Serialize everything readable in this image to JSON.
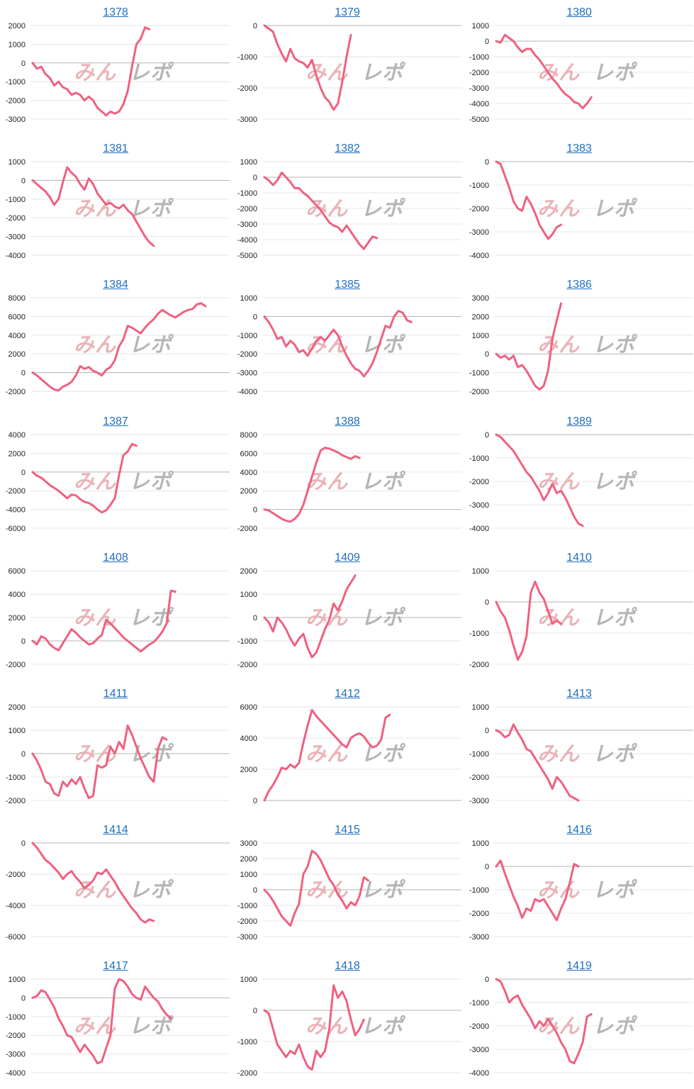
{
  "watermark": {
    "part1": "みん",
    "part2": "レポ",
    "color1": "#e9b4b8",
    "color2": "#b5b5b5"
  },
  "line_color": "#f06080",
  "chart_data": [
    {
      "type": "line",
      "title": "1378",
      "ylim": [
        -3000,
        2000
      ],
      "yticks": [
        2000,
        1000,
        0,
        -1000,
        -2000,
        -3000
      ],
      "values": [
        0,
        -300,
        -200,
        -600,
        -800,
        -1200,
        -1000,
        -1300,
        -1400,
        -1700,
        -1600,
        -1700,
        -2000,
        -1800,
        -2000,
        -2400,
        -2600,
        -2800,
        -2600,
        -2700,
        -2600,
        -2200,
        -1500,
        -200,
        1000,
        1300,
        1900,
        1800
      ]
    },
    {
      "type": "line",
      "title": "1379",
      "ylim": [
        -3000,
        0
      ],
      "yticks": [
        0,
        -1000,
        -2000,
        -3000
      ],
      "values": [
        0,
        -100,
        -200,
        -600,
        -900,
        -1150,
        -750,
        -1050,
        -1150,
        -1200,
        -1350,
        -1100,
        -1600,
        -2000,
        -2300,
        -2450,
        -2700,
        -2500,
        -1800,
        -1000,
        -300
      ]
    },
    {
      "type": "line",
      "title": "1380",
      "ylim": [
        -5000,
        1000
      ],
      "yticks": [
        1000,
        0,
        -1000,
        -2000,
        -3000,
        -4000,
        -5000
      ],
      "values": [
        0,
        -100,
        400,
        200,
        0,
        -400,
        -700,
        -500,
        -500,
        -900,
        -1200,
        -1600,
        -2000,
        -2400,
        -2700,
        -3100,
        -3400,
        -3600,
        -3900,
        -4000,
        -4300,
        -4000,
        -3600
      ]
    },
    {
      "type": "line",
      "title": "1381",
      "ylim": [
        -4000,
        1000
      ],
      "yticks": [
        1000,
        0,
        -1000,
        -2000,
        -3000,
        -4000
      ],
      "values": [
        0,
        -200,
        -400,
        -600,
        -900,
        -1300,
        -1000,
        -100,
        700,
        400,
        200,
        -200,
        -500,
        100,
        -200,
        -700,
        -1000,
        -1300,
        -1200,
        -1400,
        -1500,
        -1300,
        -1600,
        -1800,
        -2200,
        -2600,
        -3000,
        -3300,
        -3500
      ]
    },
    {
      "type": "line",
      "title": "1382",
      "ylim": [
        -5000,
        1000
      ],
      "yticks": [
        1000,
        0,
        -1000,
        -2000,
        -3000,
        -4000,
        -5000
      ],
      "values": [
        0,
        -200,
        -500,
        -200,
        300,
        0,
        -300,
        -700,
        -700,
        -1000,
        -1200,
        -1500,
        -1800,
        -2100,
        -2500,
        -2900,
        -3100,
        -3200,
        -3500,
        -3100,
        -3500,
        -3900,
        -4300,
        -4600,
        -4200,
        -3800,
        -3900
      ]
    },
    {
      "type": "line",
      "title": "1383",
      "ylim": [
        -4000,
        0
      ],
      "yticks": [
        0,
        -1000,
        -2000,
        -3000,
        -4000
      ],
      "values": [
        0,
        -100,
        -600,
        -1100,
        -1700,
        -2000,
        -2100,
        -1500,
        -1800,
        -2200,
        -2700,
        -3000,
        -3300,
        -3100,
        -2800,
        -2700
      ]
    },
    {
      "type": "line",
      "title": "1384",
      "ylim": [
        -2000,
        8000
      ],
      "yticks": [
        8000,
        6000,
        4000,
        2000,
        0,
        -2000
      ],
      "values": [
        0,
        -300,
        -700,
        -1100,
        -1500,
        -1800,
        -1900,
        -1500,
        -1300,
        -1000,
        -300,
        700,
        400,
        600,
        200,
        0,
        -300,
        300,
        600,
        1300,
        2800,
        3600,
        5000,
        4800,
        4500,
        4200,
        4800,
        5300,
        5700,
        6300,
        6700,
        6400,
        6100,
        5900,
        6200,
        6500,
        6700,
        6800,
        7300,
        7400,
        7100
      ]
    },
    {
      "type": "line",
      "title": "1385",
      "ylim": [
        -4000,
        1000
      ],
      "yticks": [
        1000,
        0,
        -1000,
        -2000,
        -3000,
        -4000
      ],
      "values": [
        0,
        -300,
        -700,
        -1200,
        -1100,
        -1600,
        -1300,
        -1500,
        -1900,
        -1800,
        -2100,
        -1700,
        -1300,
        -1100,
        -1300,
        -1000,
        -700,
        -1000,
        -1600,
        -2100,
        -2500,
        -2800,
        -2900,
        -3200,
        -2900,
        -2500,
        -1900,
        -1200,
        -500,
        -600,
        0,
        300,
        200,
        -200,
        -300
      ]
    },
    {
      "type": "line",
      "title": "1386",
      "ylim": [
        -2000,
        3000
      ],
      "yticks": [
        3000,
        2000,
        1000,
        0,
        -1000,
        -2000
      ],
      "values": [
        0,
        -200,
        -100,
        -300,
        -100,
        -700,
        -600,
        -900,
        -1300,
        -1700,
        -1900,
        -1700,
        -900,
        800,
        1800,
        2700
      ]
    },
    {
      "type": "line",
      "title": "1387",
      "ylim": [
        -6000,
        4000
      ],
      "yticks": [
        4000,
        2000,
        0,
        -2000,
        -4000,
        -6000
      ],
      "values": [
        0,
        -400,
        -600,
        -1000,
        -1400,
        -1700,
        -2000,
        -2400,
        -2800,
        -2400,
        -2500,
        -2900,
        -3200,
        -3300,
        -3600,
        -4000,
        -4300,
        -4100,
        -3500,
        -2800,
        -300,
        1800,
        2200,
        3000,
        2800
      ]
    },
    {
      "type": "line",
      "title": "1388",
      "ylim": [
        -2000,
        8000
      ],
      "yticks": [
        8000,
        6000,
        4000,
        2000,
        0,
        -2000
      ],
      "values": [
        0,
        -100,
        -400,
        -700,
        -1000,
        -1200,
        -1300,
        -1000,
        -500,
        500,
        2000,
        3500,
        5000,
        6300,
        6600,
        6500,
        6300,
        6100,
        5800,
        5600,
        5400,
        5700,
        5500
      ]
    },
    {
      "type": "line",
      "title": "1389",
      "ylim": [
        -4000,
        0
      ],
      "yticks": [
        0,
        -1000,
        -2000,
        -3000,
        -4000
      ],
      "values": [
        0,
        -100,
        -300,
        -500,
        -700,
        -1000,
        -1300,
        -1600,
        -1800,
        -2100,
        -2400,
        -2800,
        -2500,
        -2100,
        -2500,
        -2400,
        -2700,
        -3100,
        -3500,
        -3800,
        -3900
      ]
    },
    {
      "type": "line",
      "title": "1408",
      "ylim": [
        -2000,
        6000
      ],
      "yticks": [
        6000,
        4000,
        2000,
        0,
        -2000
      ],
      "values": [
        0,
        -300,
        400,
        200,
        -300,
        -600,
        -800,
        -200,
        400,
        1000,
        700,
        300,
        0,
        -300,
        -200,
        200,
        500,
        1800,
        1500,
        1100,
        700,
        300,
        0,
        -300,
        -600,
        -900,
        -600,
        -300,
        -100,
        300,
        800,
        1500,
        4300,
        4200
      ]
    },
    {
      "type": "line",
      "title": "1409",
      "ylim": [
        -2000,
        2000
      ],
      "yticks": [
        2000,
        1000,
        0,
        -1000,
        -2000
      ],
      "values": [
        0,
        -200,
        -600,
        0,
        -200,
        -500,
        -900,
        -1200,
        -900,
        -700,
        -1300,
        -1700,
        -1500,
        -1000,
        -500,
        -100,
        600,
        300,
        700,
        1200,
        1500,
        1800
      ]
    },
    {
      "type": "line",
      "title": "1410",
      "ylim": [
        -2000,
        1000
      ],
      "yticks": [
        1000,
        0,
        -1000,
        -2000
      ],
      "values": [
        0,
        -300,
        -500,
        -900,
        -1400,
        -1850,
        -1600,
        -1100,
        300,
        650,
        300,
        100,
        -300,
        -700,
        -600,
        -700
      ]
    },
    {
      "type": "line",
      "title": "1411",
      "ylim": [
        -2000,
        2000
      ],
      "yticks": [
        2000,
        1000,
        0,
        -1000,
        -2000
      ],
      "values": [
        0,
        -300,
        -700,
        -1200,
        -1300,
        -1700,
        -1800,
        -1200,
        -1400,
        -1100,
        -1300,
        -1000,
        -1500,
        -1900,
        -1800,
        -500,
        -600,
        -500,
        300,
        0,
        500,
        200,
        1200,
        800,
        300,
        -200,
        -600,
        -1000,
        -1200,
        200,
        700,
        600
      ]
    },
    {
      "type": "line",
      "title": "1412",
      "ylim": [
        0,
        6000
      ],
      "yticks": [
        6000,
        4000,
        2000,
        0
      ],
      "values": [
        0,
        600,
        1000,
        1500,
        2100,
        2000,
        2300,
        2100,
        2400,
        3700,
        4800,
        5800,
        5400,
        5100,
        4800,
        4500,
        4200,
        3900,
        3600,
        3400,
        4000,
        4200,
        4300,
        4100,
        3700,
        3400,
        3500,
        3900,
        5300,
        5500
      ]
    },
    {
      "type": "line",
      "title": "1413",
      "ylim": [
        -3000,
        1000
      ],
      "yticks": [
        1000,
        0,
        -1000,
        -2000,
        -3000
      ],
      "values": [
        0,
        -100,
        -300,
        -200,
        250,
        -100,
        -400,
        -800,
        -900,
        -1200,
        -1500,
        -1800,
        -2100,
        -2500,
        -2000,
        -2200,
        -2500,
        -2800,
        -2900,
        -3000
      ]
    },
    {
      "type": "line",
      "title": "1414",
      "ylim": [
        -6000,
        0
      ],
      "yticks": [
        0,
        -2000,
        -4000,
        -6000
      ],
      "values": [
        0,
        -300,
        -700,
        -1100,
        -1300,
        -1600,
        -1900,
        -2300,
        -2000,
        -1800,
        -2200,
        -2500,
        -2900,
        -2700,
        -2400,
        -1900,
        -2000,
        -1700,
        -2100,
        -2500,
        -3000,
        -3400,
        -3800,
        -4200,
        -4500,
        -4900,
        -5100,
        -4900,
        -5000
      ]
    },
    {
      "type": "line",
      "title": "1415",
      "ylim": [
        -3000,
        3000
      ],
      "yticks": [
        3000,
        2000,
        1000,
        0,
        -1000,
        -2000,
        -3000
      ],
      "values": [
        0,
        -300,
        -700,
        -1200,
        -1700,
        -2000,
        -2300,
        -1500,
        -900,
        1000,
        1500,
        2500,
        2300,
        1900,
        1300,
        700,
        300,
        -300,
        -700,
        -1200,
        -800,
        -1000,
        -400,
        800,
        600
      ]
    },
    {
      "type": "line",
      "title": "1416",
      "ylim": [
        -3000,
        1000
      ],
      "yticks": [
        1000,
        0,
        -1000,
        -2000,
        -3000
      ],
      "values": [
        0,
        250,
        -300,
        -800,
        -1300,
        -1700,
        -2200,
        -1800,
        -1900,
        -1400,
        -1500,
        -1400,
        -1700,
        -2000,
        -2300,
        -1800,
        -1400,
        -700,
        100,
        0
      ]
    },
    {
      "type": "line",
      "title": "1417",
      "ylim": [
        -4000,
        1000
      ],
      "yticks": [
        1000,
        0,
        -1000,
        -2000,
        -3000,
        -4000
      ],
      "values": [
        0,
        100,
        400,
        300,
        -100,
        -500,
        -1100,
        -1500,
        -2000,
        -2100,
        -2500,
        -2900,
        -2500,
        -2800,
        -3100,
        -3500,
        -3400,
        -2700,
        -2000,
        500,
        1000,
        900,
        600,
        200,
        0,
        -100,
        600,
        300,
        0,
        -200,
        -600,
        -900,
        -1100
      ]
    },
    {
      "type": "line",
      "title": "1418",
      "ylim": [
        -2000,
        1000
      ],
      "yticks": [
        1000,
        0,
        -1000,
        -2000
      ],
      "values": [
        0,
        -100,
        -600,
        -1100,
        -1300,
        -1500,
        -1300,
        -1400,
        -1100,
        -1500,
        -1800,
        -1900,
        -1300,
        -1500,
        -1300,
        -600,
        800,
        400,
        600,
        300,
        -300,
        -800,
        -600,
        -300
      ]
    },
    {
      "type": "line",
      "title": "1419",
      "ylim": [
        -4000,
        0
      ],
      "yticks": [
        0,
        -1000,
        -2000,
        -3000,
        -4000
      ],
      "values": [
        0,
        -100,
        -500,
        -1000,
        -800,
        -700,
        -1100,
        -1400,
        -1700,
        -2100,
        -1800,
        -2000,
        -1700,
        -2000,
        -2300,
        -2700,
        -3000,
        -3500,
        -3600,
        -3200,
        -2700,
        -1600,
        -1500
      ]
    }
  ]
}
